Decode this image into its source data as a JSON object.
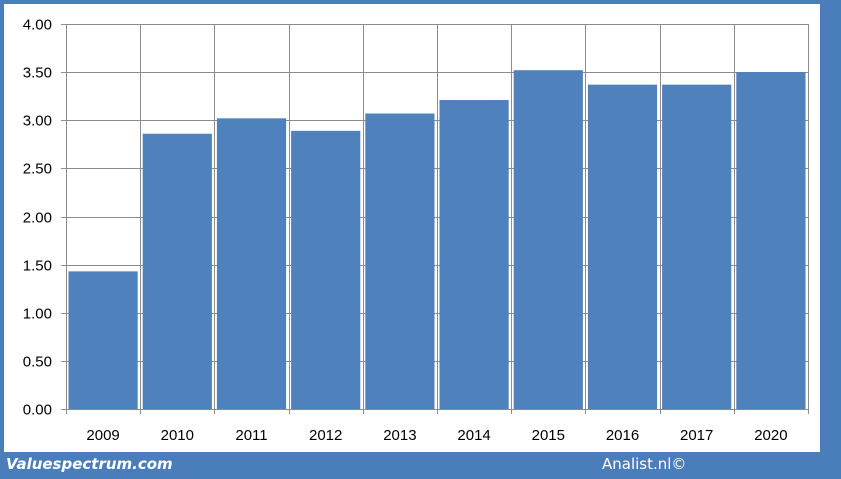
{
  "colors": {
    "frame": "#4a7ebb",
    "bar": "#4f81bd",
    "grid": "#8c8c8c",
    "axis": "#8c8c8c"
  },
  "footer": {
    "left_text": "Valuespectrum.com",
    "right_text": "Analist.nl©"
  },
  "chart_data": {
    "type": "bar",
    "categories": [
      "2009",
      "2010",
      "2011",
      "2012",
      "2013",
      "2014",
      "2015",
      "2016",
      "2017",
      "2020"
    ],
    "values": [
      1.43,
      2.86,
      3.02,
      2.89,
      3.07,
      3.21,
      3.52,
      3.37,
      3.37,
      3.5
    ],
    "ylim": [
      0,
      4
    ],
    "yticks": [
      "0.00",
      "0.50",
      "1.00",
      "1.50",
      "2.00",
      "2.50",
      "3.00",
      "3.50",
      "4.00"
    ],
    "grid": true,
    "title": "",
    "xlabel": "",
    "ylabel": ""
  }
}
